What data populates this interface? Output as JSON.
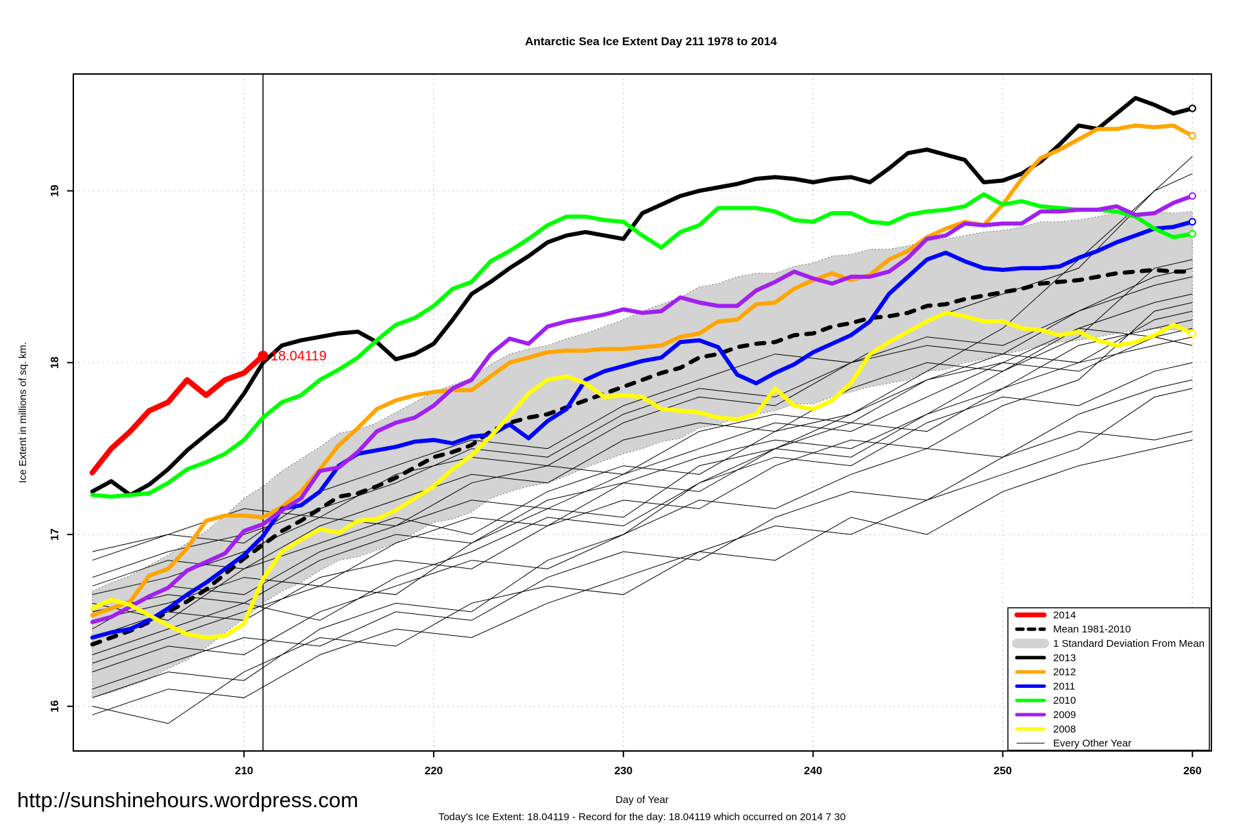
{
  "title": "Antarctic Sea Ice Extent Day 211 1978 to 2014",
  "axes": {
    "x_label": "Day of Year",
    "y_label": "Ice Extent in millions of sq. km.",
    "x_ticks": [
      210,
      220,
      230,
      240,
      250,
      260
    ],
    "y_ticks": [
      16,
      17,
      18,
      19
    ],
    "xlim": [
      201,
      261
    ],
    "ylim": [
      15.74,
      19.68
    ],
    "grid": "dotted"
  },
  "marker_line_day": 211,
  "annotation": {
    "text": "18.04119",
    "day": 211,
    "value": 18.04119,
    "color": "#ff0000"
  },
  "footer": {
    "url": "http://sunshinehours.wordpress.com",
    "x_label_note": "Today's Ice Extent: 18.04119  - Record for the day: 18.04119 which occurred on 2014 7 30"
  },
  "legend": {
    "items": [
      {
        "label": "2014",
        "color": "#FF0000",
        "width": 7,
        "style": "solid"
      },
      {
        "label": "Mean 1981-2010",
        "color": "#000000",
        "width": 5,
        "style": "dashed"
      },
      {
        "label": "1 Standard Deviation From Mean",
        "color": "#D3D3D3",
        "width": 14,
        "style": "band"
      },
      {
        "label": "2013",
        "color": "#000000",
        "width": 5,
        "style": "solid"
      },
      {
        "label": "2012",
        "color": "#FFA500",
        "width": 5,
        "style": "solid"
      },
      {
        "label": "2011",
        "color": "#0000FF",
        "width": 5,
        "style": "solid"
      },
      {
        "label": "2010",
        "color": "#00FF00",
        "width": 5,
        "style": "solid"
      },
      {
        "label": "2009",
        "color": "#A020F0",
        "width": 5,
        "style": "solid"
      },
      {
        "label": "2008",
        "color": "#FFFF00",
        "width": 5,
        "style": "solid"
      },
      {
        "label": "Every Other Year",
        "color": "#000000",
        "width": 1,
        "style": "thin"
      }
    ]
  },
  "chart_data": {
    "type": "line",
    "title": "Antarctic Sea Ice Extent Day 211 1978 to 2014",
    "xlabel": "Day of Year",
    "ylabel": "Ice Extent in millions of sq. km.",
    "xlim": [
      201,
      261
    ],
    "ylim": [
      15.74,
      19.68
    ],
    "x": [
      202,
      203,
      204,
      205,
      206,
      207,
      208,
      209,
      210,
      211,
      212,
      213,
      214,
      215,
      216,
      217,
      218,
      219,
      220,
      221,
      222,
      223,
      224,
      225,
      226,
      227,
      228,
      229,
      230,
      231,
      232,
      233,
      234,
      235,
      236,
      237,
      238,
      239,
      240,
      241,
      242,
      243,
      244,
      245,
      246,
      247,
      248,
      249,
      250,
      251,
      252,
      253,
      254,
      255,
      256,
      257,
      258,
      259,
      260
    ],
    "band": {
      "name": "1 Standard Deviation From Mean",
      "color": "#D3D3D3",
      "top": [
        16.67,
        16.72,
        16.76,
        16.82,
        16.88,
        16.95,
        17.02,
        17.11,
        17.21,
        17.28,
        17.37,
        17.44,
        17.51,
        17.59,
        17.61,
        17.65,
        17.71,
        17.77,
        17.83,
        17.87,
        17.91,
        17.99,
        18.05,
        18.08,
        18.1,
        18.14,
        18.17,
        18.21,
        18.25,
        18.3,
        18.34,
        18.38,
        18.44,
        18.46,
        18.5,
        18.52,
        18.52,
        18.56,
        18.58,
        18.62,
        18.63,
        18.66,
        18.66,
        18.68,
        18.71,
        18.72,
        18.74,
        18.76,
        18.77,
        18.79,
        18.82,
        18.82,
        18.83,
        18.85,
        18.87,
        18.87,
        18.88,
        18.87,
        18.88
      ],
      "bottom": [
        16.05,
        16.08,
        16.12,
        16.16,
        16.22,
        16.27,
        16.34,
        16.43,
        16.51,
        16.6,
        16.67,
        16.72,
        16.79,
        16.85,
        16.87,
        16.91,
        16.95,
        17.01,
        17.07,
        17.09,
        17.13,
        17.21,
        17.25,
        17.28,
        17.3,
        17.34,
        17.39,
        17.43,
        17.47,
        17.5,
        17.54,
        17.56,
        17.62,
        17.64,
        17.68,
        17.7,
        17.72,
        17.76,
        17.76,
        17.8,
        17.83,
        17.86,
        17.88,
        17.9,
        17.95,
        17.96,
        18.0,
        18.02,
        18.05,
        18.07,
        18.1,
        18.12,
        18.13,
        18.15,
        18.17,
        18.19,
        18.2,
        18.19,
        18.18
      ]
    },
    "series": [
      {
        "name": "Mean 1981-2010",
        "color": "#000000",
        "width": 6,
        "dash": "12 13",
        "values": [
          16.36,
          16.4,
          16.44,
          16.49,
          16.55,
          16.61,
          16.68,
          16.77,
          16.86,
          16.94,
          17.02,
          17.08,
          17.15,
          17.22,
          17.24,
          17.28,
          17.33,
          17.39,
          17.45,
          17.48,
          17.52,
          17.6,
          17.65,
          17.68,
          17.7,
          17.74,
          17.78,
          17.82,
          17.86,
          17.9,
          17.94,
          17.97,
          18.03,
          18.05,
          18.09,
          18.11,
          18.12,
          18.16,
          18.17,
          18.21,
          18.23,
          18.26,
          18.27,
          18.29,
          18.33,
          18.34,
          18.37,
          18.39,
          18.41,
          18.43,
          18.46,
          18.47,
          18.48,
          18.5,
          18.52,
          18.53,
          18.54,
          18.53,
          18.53
        ]
      },
      {
        "name": "2013",
        "color": "#000000",
        "width": 6,
        "end_marker": true,
        "values": [
          17.25,
          17.31,
          17.23,
          17.29,
          17.38,
          17.49,
          17.58,
          17.67,
          17.82,
          18.0,
          18.1,
          18.13,
          18.15,
          18.17,
          18.18,
          18.12,
          18.02,
          18.05,
          18.11,
          18.25,
          18.4,
          18.47,
          18.55,
          18.62,
          18.7,
          18.74,
          18.76,
          18.74,
          18.72,
          18.87,
          18.92,
          18.97,
          19.0,
          19.02,
          19.04,
          19.07,
          19.08,
          19.07,
          19.05,
          19.07,
          19.08,
          19.05,
          19.13,
          19.22,
          19.24,
          19.21,
          19.18,
          19.05,
          19.06,
          19.1,
          19.17,
          19.27,
          19.38,
          19.36,
          19.45,
          19.54,
          19.5,
          19.45,
          19.48
        ]
      },
      {
        "name": "2012",
        "color": "#FFA500",
        "width": 6,
        "end_marker": true,
        "values": [
          16.53,
          16.57,
          16.61,
          16.76,
          16.8,
          16.92,
          17.08,
          17.11,
          17.11,
          17.1,
          17.16,
          17.25,
          17.38,
          17.52,
          17.62,
          17.73,
          17.78,
          17.81,
          17.83,
          17.84,
          17.84,
          17.92,
          18.0,
          18.03,
          18.06,
          18.07,
          18.07,
          18.08,
          18.08,
          18.09,
          18.1,
          18.15,
          18.17,
          18.24,
          18.25,
          18.34,
          18.35,
          18.43,
          18.48,
          18.52,
          18.48,
          18.51,
          18.6,
          18.65,
          18.73,
          18.78,
          18.82,
          18.8,
          18.92,
          19.07,
          19.19,
          19.24,
          19.3,
          19.36,
          19.36,
          19.38,
          19.37,
          19.38,
          19.32
        ]
      },
      {
        "name": "2011",
        "color": "#0000FF",
        "width": 6,
        "end_marker": true,
        "values": [
          16.4,
          16.43,
          16.45,
          16.5,
          16.57,
          16.65,
          16.72,
          16.8,
          16.88,
          16.99,
          17.15,
          17.17,
          17.25,
          17.4,
          17.47,
          17.49,
          17.51,
          17.54,
          17.55,
          17.53,
          17.57,
          17.58,
          17.64,
          17.56,
          17.66,
          17.73,
          17.9,
          17.95,
          17.98,
          18.01,
          18.03,
          18.12,
          18.13,
          18.09,
          17.93,
          17.88,
          17.94,
          17.99,
          18.06,
          18.11,
          18.16,
          18.24,
          18.4,
          18.5,
          18.6,
          18.64,
          18.59,
          18.55,
          18.54,
          18.55,
          18.55,
          18.56,
          18.61,
          18.65,
          18.7,
          18.74,
          18.78,
          18.79,
          18.82
        ]
      },
      {
        "name": "2010",
        "color": "#00FF00",
        "width": 6,
        "end_marker": true,
        "values": [
          17.23,
          17.22,
          17.23,
          17.24,
          17.3,
          17.38,
          17.42,
          17.47,
          17.55,
          17.68,
          17.77,
          17.81,
          17.9,
          17.96,
          18.03,
          18.13,
          18.22,
          18.26,
          18.33,
          18.43,
          18.47,
          18.59,
          18.65,
          18.72,
          18.8,
          18.85,
          18.85,
          18.83,
          18.82,
          18.74,
          18.67,
          18.76,
          18.8,
          18.9,
          18.9,
          18.9,
          18.88,
          18.83,
          18.82,
          18.87,
          18.87,
          18.82,
          18.81,
          18.86,
          18.88,
          18.89,
          18.91,
          18.98,
          18.92,
          18.94,
          18.91,
          18.9,
          18.89,
          18.89,
          18.88,
          18.85,
          18.78,
          18.73,
          18.75
        ]
      },
      {
        "name": "2009",
        "color": "#A020F0",
        "width": 6,
        "end_marker": true,
        "values": [
          16.49,
          16.52,
          16.58,
          16.64,
          16.69,
          16.79,
          16.84,
          16.89,
          17.02,
          17.06,
          17.14,
          17.21,
          17.37,
          17.39,
          17.48,
          17.6,
          17.65,
          17.68,
          17.75,
          17.85,
          17.9,
          18.05,
          18.14,
          18.11,
          18.21,
          18.24,
          18.26,
          18.28,
          18.31,
          18.29,
          18.3,
          18.38,
          18.35,
          18.33,
          18.33,
          18.42,
          18.47,
          18.53,
          18.49,
          18.46,
          18.5,
          18.5,
          18.53,
          18.61,
          18.72,
          18.74,
          18.81,
          18.8,
          18.81,
          18.81,
          18.88,
          18.88,
          18.89,
          18.89,
          18.91,
          18.86,
          18.87,
          18.93,
          18.97
        ]
      },
      {
        "name": "2008",
        "color": "#FFFF00",
        "width": 6,
        "end_marker": true,
        "values": [
          16.57,
          16.62,
          16.59,
          16.53,
          16.47,
          16.42,
          16.4,
          16.41,
          16.48,
          16.74,
          16.9,
          16.97,
          17.03,
          17.01,
          17.08,
          17.09,
          17.14,
          17.21,
          17.28,
          17.38,
          17.46,
          17.57,
          17.69,
          17.82,
          17.9,
          17.92,
          17.88,
          17.8,
          17.81,
          17.8,
          17.73,
          17.72,
          17.71,
          17.68,
          17.67,
          17.7,
          17.85,
          17.75,
          17.73,
          17.78,
          17.88,
          18.05,
          18.12,
          18.18,
          18.24,
          18.29,
          18.27,
          18.24,
          18.24,
          18.2,
          18.19,
          18.16,
          18.18,
          18.13,
          18.1,
          18.12,
          18.16,
          18.22,
          18.17
        ]
      },
      {
        "name": "2014",
        "color": "#FF0000",
        "width": 8,
        "end_dot": true,
        "days": [
          202,
          203,
          204,
          205,
          206,
          207,
          208,
          209,
          210,
          211
        ],
        "values": [
          17.36,
          17.5,
          17.6,
          17.72,
          17.77,
          17.9,
          17.81,
          17.9,
          17.94,
          18.04
        ]
      }
    ],
    "background_series": {
      "name": "Every Other Year",
      "color": "#000000",
      "x": [
        202,
        206,
        210,
        214,
        218,
        222,
        226,
        230,
        234,
        238,
        242,
        246,
        250,
        254,
        258,
        260
      ],
      "lines": [
        [
          16.75,
          16.9,
          17.0,
          17.15,
          17.3,
          17.5,
          17.45,
          17.7,
          17.85,
          17.8,
          18.0,
          18.15,
          18.1,
          18.3,
          18.45,
          18.5
        ],
        [
          16.6,
          16.5,
          16.8,
          16.95,
          17.1,
          17.0,
          17.25,
          17.4,
          17.35,
          17.6,
          17.7,
          17.9,
          18.0,
          18.2,
          18.15,
          18.2
        ],
        [
          16.45,
          16.7,
          16.65,
          16.9,
          17.05,
          17.2,
          17.15,
          17.35,
          17.5,
          17.65,
          17.6,
          17.8,
          18.0,
          17.95,
          18.15,
          18.1
        ],
        [
          16.3,
          16.45,
          16.6,
          16.5,
          16.75,
          16.9,
          17.1,
          17.05,
          17.3,
          17.45,
          17.4,
          17.65,
          17.8,
          17.75,
          17.95,
          18.0
        ],
        [
          16.2,
          16.35,
          16.3,
          16.55,
          16.7,
          16.85,
          16.8,
          17.0,
          17.2,
          17.15,
          17.35,
          17.5,
          17.45,
          17.7,
          17.85,
          17.9
        ],
        [
          16.1,
          16.25,
          16.4,
          16.35,
          16.55,
          16.5,
          16.75,
          16.9,
          16.85,
          17.1,
          17.25,
          17.2,
          17.45,
          17.6,
          17.55,
          17.6
        ],
        [
          15.95,
          16.1,
          16.05,
          16.3,
          16.45,
          16.4,
          16.6,
          16.75,
          16.9,
          16.85,
          17.1,
          17.0,
          17.25,
          17.4,
          17.5,
          17.55
        ],
        [
          16.0,
          15.9,
          16.2,
          16.4,
          16.35,
          16.6,
          16.7,
          16.65,
          16.9,
          17.05,
          17.0,
          17.2,
          17.35,
          17.5,
          17.8,
          17.85
        ],
        [
          16.55,
          16.65,
          16.6,
          16.85,
          17.0,
          16.95,
          17.2,
          17.3,
          17.25,
          17.5,
          17.65,
          17.6,
          17.85,
          18.0,
          18.1,
          18.15
        ],
        [
          16.7,
          16.85,
          16.8,
          17.05,
          17.2,
          17.35,
          17.3,
          17.55,
          17.65,
          17.6,
          17.85,
          18.0,
          17.95,
          18.2,
          18.35,
          18.4
        ],
        [
          16.85,
          17.0,
          17.15,
          17.1,
          17.35,
          17.45,
          17.4,
          17.65,
          17.8,
          17.75,
          18.0,
          18.1,
          18.05,
          18.3,
          18.5,
          18.55
        ],
        [
          16.4,
          16.55,
          16.5,
          16.75,
          16.85,
          16.8,
          17.05,
          17.2,
          17.15,
          17.4,
          17.55,
          17.5,
          17.75,
          17.9,
          18.3,
          18.35
        ],
        [
          16.65,
          16.75,
          16.9,
          17.1,
          17.05,
          17.3,
          17.4,
          17.35,
          17.6,
          17.7,
          17.65,
          17.9,
          18.05,
          18.0,
          18.25,
          18.3
        ],
        [
          16.5,
          16.6,
          16.75,
          16.7,
          16.95,
          17.1,
          17.05,
          17.3,
          17.45,
          17.55,
          17.5,
          17.7,
          17.85,
          18.1,
          18.2,
          18.25
        ],
        [
          16.25,
          16.4,
          16.55,
          16.7,
          16.65,
          16.95,
          17.15,
          17.1,
          17.4,
          17.5,
          17.45,
          17.7,
          17.95,
          18.15,
          18.55,
          18.6
        ],
        [
          16.9,
          17.0,
          16.95,
          17.25,
          17.4,
          17.55,
          17.5,
          17.75,
          17.9,
          18.05,
          18.0,
          18.25,
          18.4,
          18.55,
          19.0,
          19.1
        ],
        [
          16.05,
          16.2,
          16.15,
          16.45,
          16.6,
          16.55,
          16.85,
          17.0,
          17.3,
          17.5,
          17.7,
          17.95,
          18.2,
          18.6,
          19.0,
          19.2
        ]
      ]
    }
  }
}
